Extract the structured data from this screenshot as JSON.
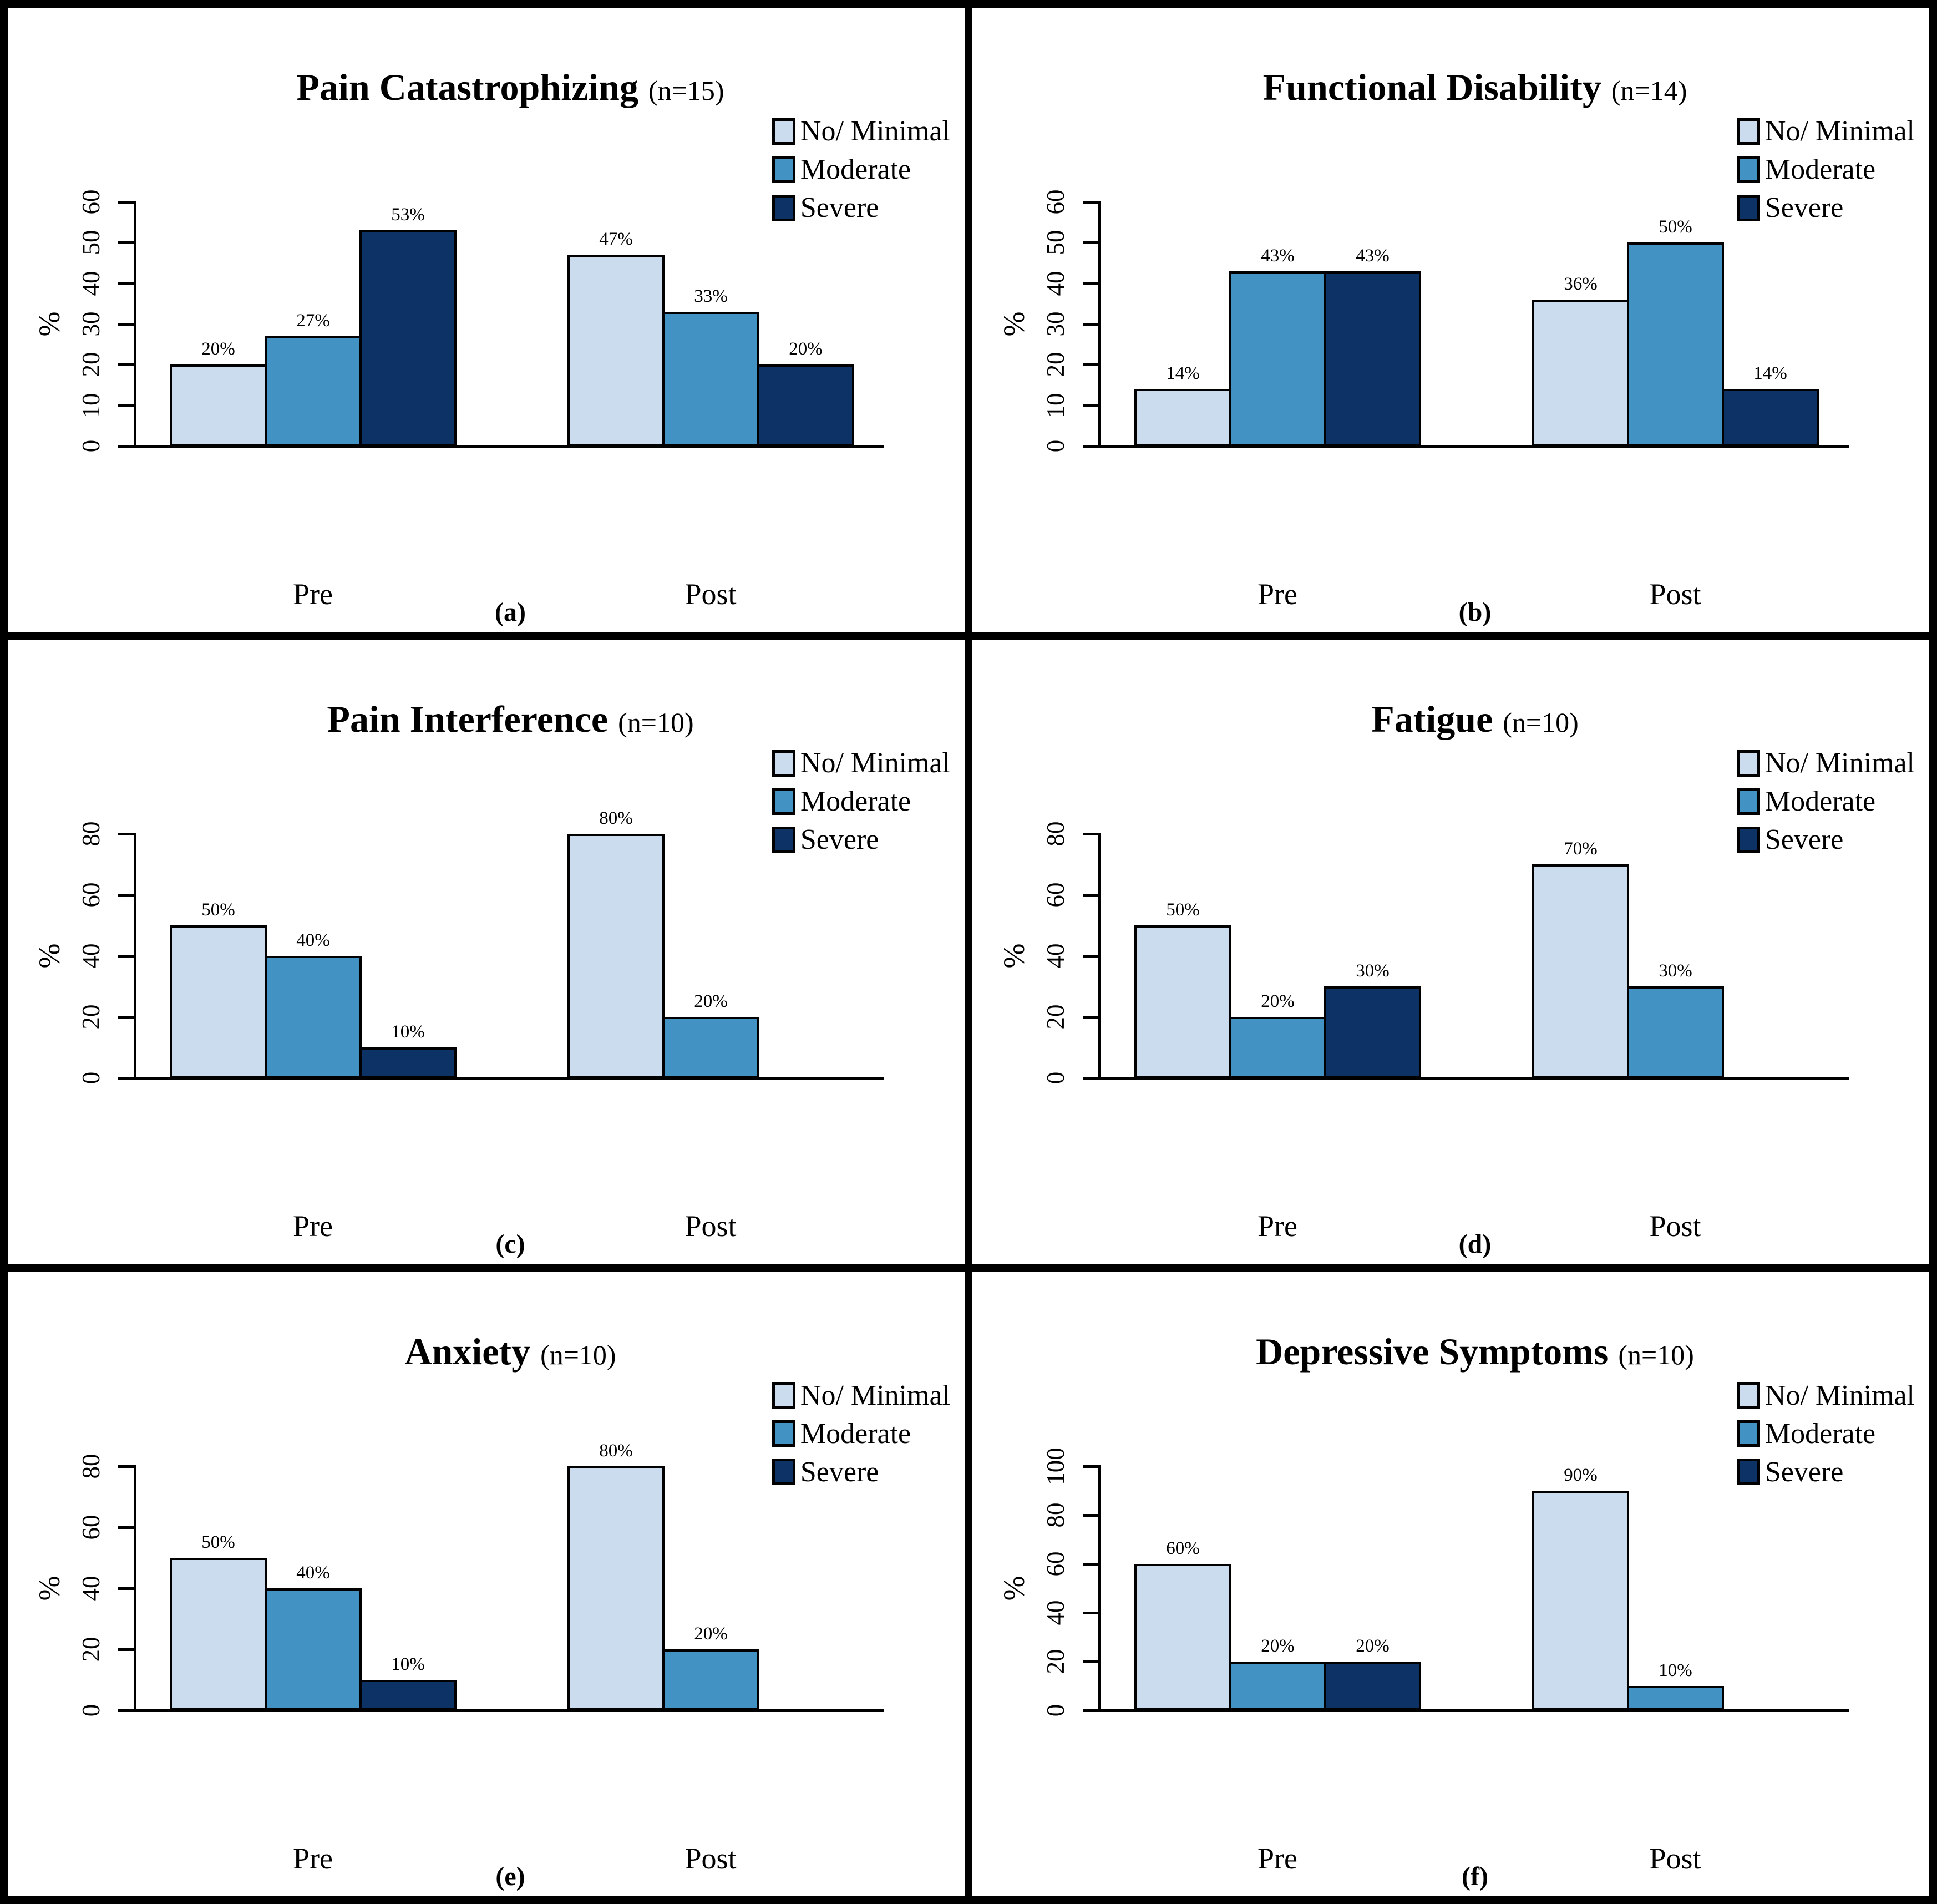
{
  "page": {
    "background": "#ffffff",
    "frame_color": "#000000"
  },
  "legend": {
    "position": "top-right",
    "items": [
      {
        "label": "No/ Minimal",
        "color": "#CBDCEE"
      },
      {
        "label": "Moderate",
        "color": "#4292C4"
      },
      {
        "label": "Severe",
        "color": "#0C3266"
      }
    ]
  },
  "chart_data": [
    {
      "type": "bar",
      "panel_label": "(a)",
      "title": "Pain Catastrophizing",
      "n_label": "(n=15)",
      "ylabel": "%",
      "categories": [
        "Pre",
        "Post"
      ],
      "series": [
        {
          "name": "No/ Minimal",
          "values": [
            20,
            47
          ]
        },
        {
          "name": "Moderate",
          "values": [
            27,
            33
          ]
        },
        {
          "name": "Severe",
          "values": [
            53,
            20
          ]
        }
      ],
      "value_labels": [
        [
          "20%",
          "27%",
          "53%"
        ],
        [
          "47%",
          "33%",
          "20%"
        ]
      ],
      "ylim": [
        0,
        60
      ],
      "yticks": [
        0,
        10,
        20,
        30,
        40,
        50,
        60
      ],
      "grid": false,
      "legend_position": "top-right"
    },
    {
      "type": "bar",
      "panel_label": "(b)",
      "title": "Functional Disability",
      "n_label": "(n=14)",
      "ylabel": "%",
      "categories": [
        "Pre",
        "Post"
      ],
      "series": [
        {
          "name": "No/ Minimal",
          "values": [
            14,
            36
          ]
        },
        {
          "name": "Moderate",
          "values": [
            43,
            50
          ]
        },
        {
          "name": "Severe",
          "values": [
            43,
            14
          ]
        }
      ],
      "value_labels": [
        [
          "14%",
          "43%",
          "43%"
        ],
        [
          "36%",
          "50%",
          "14%"
        ]
      ],
      "ylim": [
        0,
        60
      ],
      "yticks": [
        0,
        10,
        20,
        30,
        40,
        50,
        60
      ],
      "grid": false,
      "legend_position": "top-right"
    },
    {
      "type": "bar",
      "panel_label": "(c)",
      "title": "Pain Interference",
      "n_label": "(n=10)",
      "ylabel": "%",
      "categories": [
        "Pre",
        "Post"
      ],
      "series": [
        {
          "name": "No/ Minimal",
          "values": [
            50,
            80
          ]
        },
        {
          "name": "Moderate",
          "values": [
            40,
            20
          ]
        },
        {
          "name": "Severe",
          "values": [
            10,
            0
          ]
        }
      ],
      "value_labels": [
        [
          "50%",
          "40%",
          "10%"
        ],
        [
          "80%",
          "20%",
          ""
        ]
      ],
      "ylim": [
        0,
        80
      ],
      "yticks": [
        0,
        20,
        40,
        60,
        80
      ],
      "grid": false,
      "legend_position": "top-right"
    },
    {
      "type": "bar",
      "panel_label": "(d)",
      "title": "Fatigue",
      "n_label": "(n=10)",
      "ylabel": "%",
      "categories": [
        "Pre",
        "Post"
      ],
      "series": [
        {
          "name": "No/ Minimal",
          "values": [
            50,
            70
          ]
        },
        {
          "name": "Moderate",
          "values": [
            20,
            30
          ]
        },
        {
          "name": "Severe",
          "values": [
            30,
            0
          ]
        }
      ],
      "value_labels": [
        [
          "50%",
          "20%",
          "30%"
        ],
        [
          "70%",
          "30%",
          ""
        ]
      ],
      "ylim": [
        0,
        80
      ],
      "yticks": [
        0,
        20,
        40,
        60,
        80
      ],
      "grid": false,
      "legend_position": "top-right"
    },
    {
      "type": "bar",
      "panel_label": "(e)",
      "title": "Anxiety",
      "n_label": "(n=10)",
      "ylabel": "%",
      "categories": [
        "Pre",
        "Post"
      ],
      "series": [
        {
          "name": "No/ Minimal",
          "values": [
            50,
            80
          ]
        },
        {
          "name": "Moderate",
          "values": [
            40,
            20
          ]
        },
        {
          "name": "Severe",
          "values": [
            10,
            0
          ]
        }
      ],
      "value_labels": [
        [
          "50%",
          "40%",
          "10%"
        ],
        [
          "80%",
          "20%",
          ""
        ]
      ],
      "ylim": [
        0,
        80
      ],
      "yticks": [
        0,
        20,
        40,
        60,
        80
      ],
      "grid": false,
      "legend_position": "top-right"
    },
    {
      "type": "bar",
      "panel_label": "(f)",
      "title": "Depressive Symptoms",
      "n_label": "(n=10)",
      "ylabel": "%",
      "categories": [
        "Pre",
        "Post"
      ],
      "series": [
        {
          "name": "No/ Minimal",
          "values": [
            60,
            90
          ]
        },
        {
          "name": "Moderate",
          "values": [
            20,
            10
          ]
        },
        {
          "name": "Severe",
          "values": [
            20,
            0
          ]
        }
      ],
      "value_labels": [
        [
          "60%",
          "20%",
          "20%"
        ],
        [
          "90%",
          "10%",
          ""
        ]
      ],
      "ylim": [
        0,
        100
      ],
      "yticks": [
        0,
        20,
        40,
        60,
        80,
        100
      ],
      "grid": false,
      "legend_position": "top-right"
    }
  ]
}
